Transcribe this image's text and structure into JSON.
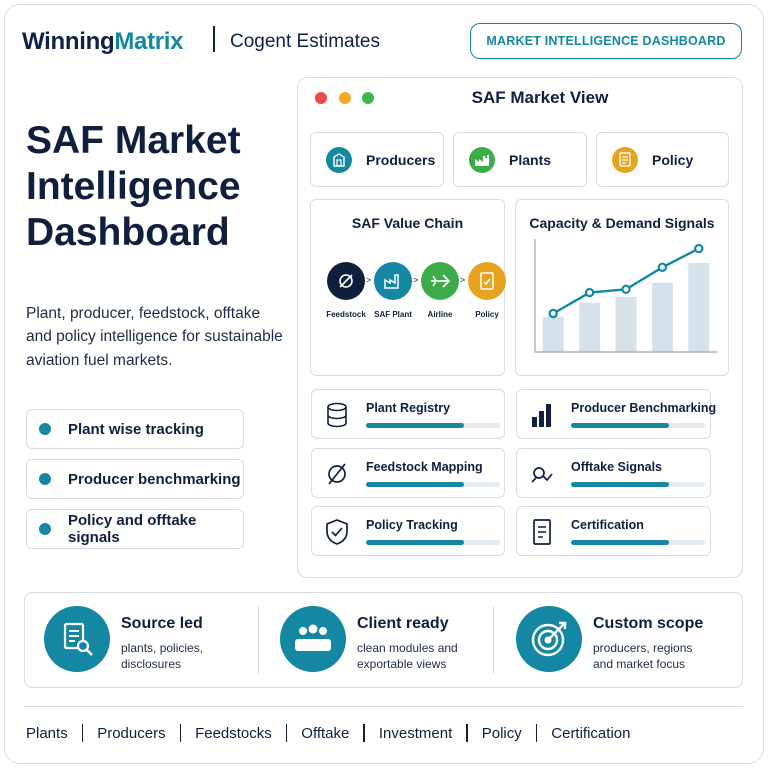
{
  "header": {
    "brand_prefix": "Winning",
    "brand_suffix": "Matrix",
    "sub_brand": "Cogent Estimates",
    "badge": "MARKET INTELLIGENCE DASHBOARD"
  },
  "hero": {
    "title_line1": "SAF Market",
    "title_line2": "Intelligence",
    "title_line3": "Dashboard",
    "description": "Plant, producer, feedstock, offtake and policy intelligence for sustainable aviation fuel markets."
  },
  "features": [
    {
      "label": "Plant wise tracking"
    },
    {
      "label": "Producer benchmarking"
    },
    {
      "label": "Policy and offtake signals"
    }
  ],
  "window": {
    "title": "SAF Market View",
    "tabs": [
      {
        "label": "Producers",
        "icon": "building-icon",
        "color": "#1487a3"
      },
      {
        "label": "Plants",
        "icon": "factory-icon",
        "color": "#3cac4a"
      },
      {
        "label": "Policy",
        "icon": "document-icon",
        "color": "#e6a31e"
      }
    ],
    "value_chain": {
      "title": "SAF Value Chain",
      "nodes": [
        {
          "label": "Feedstock",
          "icon": "empty-set-icon",
          "color": "#0f1f3d"
        },
        {
          "label": "SAF Plant",
          "icon": "factory-icon",
          "color": "#1487a3"
        },
        {
          "label": "Airline",
          "icon": "plane-icon",
          "color": "#3cac4a"
        },
        {
          "label": "Policy",
          "icon": "checklist-icon",
          "color": "#e6a31e"
        }
      ]
    },
    "capacity_chart": {
      "title": "Capacity & Demand Signals"
    },
    "modules": [
      {
        "label": "Plant Registry",
        "icon": "database-icon",
        "progress": 0.73
      },
      {
        "label": "Producer Benchmarking",
        "icon": "bar-chart-icon",
        "progress": 0.73
      },
      {
        "label": "Feedstock Mapping",
        "icon": "empty-set-icon",
        "progress": 0.73
      },
      {
        "label": "Offtake Signals",
        "icon": "handshake-icon",
        "progress": 0.73
      },
      {
        "label": "Policy Tracking",
        "icon": "shield-check-icon",
        "progress": 0.73
      },
      {
        "label": "Certification",
        "icon": "document-icon",
        "progress": 0.73
      }
    ]
  },
  "chart_data": {
    "type": "bar",
    "title": "Capacity & Demand Signals",
    "categories": [
      "",
      "",
      "",
      "",
      ""
    ],
    "series": [
      {
        "type": "bar",
        "values": [
          32,
          45,
          50,
          63,
          81
        ]
      },
      {
        "type": "line",
        "values": [
          35,
          54,
          57,
          77,
          94
        ]
      }
    ],
    "ylim": [
      0,
      100
    ],
    "grid": false,
    "colors": {
      "bar": "#d5e2ec",
      "line": "#1487a3"
    }
  },
  "highlights": [
    {
      "title": "Source led",
      "desc_line1": "plants, policies,",
      "desc_line2": "disclosures",
      "icon": "document-search-icon"
    },
    {
      "title": "Client ready",
      "desc_line1": "clean modules and",
      "desc_line2": "exportable views",
      "icon": "team-icon"
    },
    {
      "title": "Custom scope",
      "desc_line1": "producers, regions",
      "desc_line2": "and market focus",
      "icon": "target-icon"
    }
  ],
  "footer": [
    "Plants",
    "Producers",
    "Feedstocks",
    "Offtake",
    "Investment",
    "Policy",
    "Certification"
  ],
  "colors": {
    "accent": "#1487a3",
    "navy": "#0f1f3d",
    "green": "#3cac4a",
    "amber": "#e6a31e",
    "red": "#ee4b4b"
  }
}
